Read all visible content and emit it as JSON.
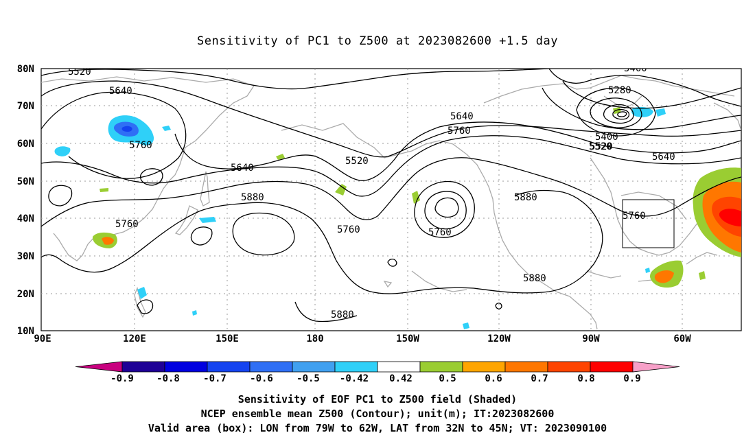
{
  "title": "Sensitivity of PC1 to Z500 at 2023082600 +1.5 day",
  "map": {
    "lon_ticks": [
      "90E",
      "120E",
      "150E",
      "180",
      "150W",
      "120W",
      "90W",
      "60W"
    ],
    "lat_ticks": [
      "80N",
      "70N",
      "60N",
      "50N",
      "40N",
      "30N",
      "20N",
      "10N"
    ],
    "contour_labels": [
      "5520",
      "5640",
      "5760",
      "5640",
      "5520",
      "5760",
      "5880",
      "5760",
      "5640",
      "5760",
      "5520",
      "5880",
      "5760",
      "5880",
      "5880",
      "5280",
      "5400",
      "5400",
      "5520",
      "5640",
      "5760",
      "5880"
    ],
    "valid_box": {
      "lon_from": -79,
      "lon_to": -62,
      "lat_from": 32,
      "lat_to": 45
    }
  },
  "colorbar": {
    "ticks": [
      "-0.9",
      "-0.8",
      "-0.7",
      "-0.6",
      "-0.5",
      "-0.42",
      "0.42",
      "0.5",
      "0.6",
      "0.7",
      "0.8",
      "0.9"
    ],
    "colors": [
      "#c8007f",
      "#1e0096",
      "#0000e0",
      "#1443f0",
      "#2f6ff5",
      "#40a0f0",
      "#2fd0f8",
      "#ffffff",
      "#9acd32",
      "#ffa500",
      "#ff7700",
      "#ff4400",
      "#ff0000",
      "#f7a0c8"
    ]
  },
  "captions": [
    "Sensitivity of EOF PC1 to Z500 field (Shaded)",
    "NCEP ensemble mean Z500 (Contour); unit(m); IT:2023082600",
    "Valid area (box): LON from 79W to 62W, LAT from 32N to 45N; VT: 2023090100"
  ]
}
